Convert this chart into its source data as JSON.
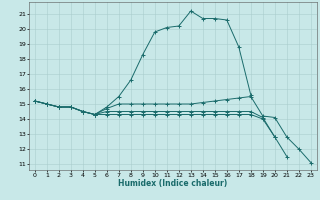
{
  "xlabel": "Humidex (Indice chaleur)",
  "bg_color": "#c8e8e8",
  "grid_color": "#aacece",
  "line_color": "#1a6b6b",
  "xlim": [
    -0.5,
    23.5
  ],
  "ylim": [
    10.6,
    21.8
  ],
  "yticks": [
    11,
    12,
    13,
    14,
    15,
    16,
    17,
    18,
    19,
    20,
    21
  ],
  "xticks": [
    0,
    1,
    2,
    3,
    4,
    5,
    6,
    7,
    8,
    9,
    10,
    11,
    12,
    13,
    14,
    15,
    16,
    17,
    18,
    19,
    20,
    21,
    22,
    23
  ],
  "curves": [
    {
      "x": [
        0,
        1,
        2,
        3,
        4,
        5,
        6,
        7,
        8,
        9,
        10,
        11,
        12,
        13,
        14,
        15,
        16,
        17,
        18
      ],
      "y": [
        15.2,
        15.0,
        14.8,
        14.8,
        14.5,
        14.3,
        14.8,
        15.5,
        16.6,
        18.3,
        19.8,
        20.1,
        20.2,
        21.2,
        20.7,
        20.7,
        20.6,
        18.8,
        15.6
      ]
    },
    {
      "x": [
        0,
        1,
        2,
        3,
        4,
        5,
        6,
        7,
        8,
        9,
        10,
        11,
        12,
        13,
        14,
        15,
        16,
        17,
        18,
        19,
        20,
        21,
        22,
        23
      ],
      "y": [
        15.2,
        15.0,
        14.8,
        14.8,
        14.5,
        14.3,
        14.7,
        15.0,
        15.0,
        15.0,
        15.0,
        15.0,
        15.0,
        15.0,
        15.1,
        15.2,
        15.3,
        15.4,
        15.5,
        14.2,
        14.1,
        12.8,
        12.0,
        11.1
      ]
    },
    {
      "x": [
        0,
        1,
        2,
        3,
        4,
        5,
        6,
        7,
        8,
        9,
        10,
        11,
        12,
        13,
        14,
        15,
        16,
        17,
        18,
        19,
        20,
        21
      ],
      "y": [
        15.2,
        15.0,
        14.8,
        14.8,
        14.5,
        14.3,
        14.5,
        14.5,
        14.5,
        14.5,
        14.5,
        14.5,
        14.5,
        14.5,
        14.5,
        14.5,
        14.5,
        14.5,
        14.5,
        14.1,
        12.8,
        11.5
      ]
    },
    {
      "x": [
        0,
        1,
        2,
        3,
        4,
        5,
        6,
        7,
        8,
        9,
        10,
        11,
        12,
        13,
        14,
        15,
        16,
        17,
        18,
        19,
        20
      ],
      "y": [
        15.2,
        15.0,
        14.8,
        14.8,
        14.5,
        14.3,
        14.3,
        14.3,
        14.3,
        14.3,
        14.3,
        14.3,
        14.3,
        14.3,
        14.3,
        14.3,
        14.3,
        14.3,
        14.3,
        14.0,
        12.8
      ]
    }
  ]
}
